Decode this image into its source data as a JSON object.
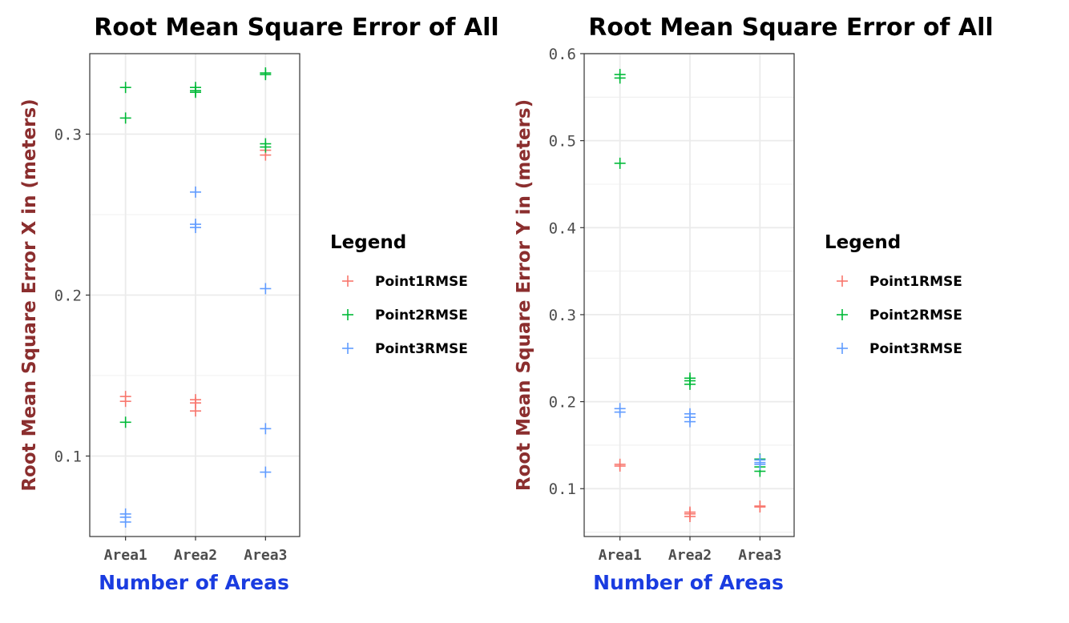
{
  "colors": {
    "axis_title_y": "#8B2E2E",
    "axis_title_x": "#1A3CE0",
    "grid": "#EBEBEB",
    "panel_border": "#333333",
    "tick_text": "#4D4D4D"
  },
  "chart_data": [
    {
      "type": "scatter",
      "title": "Root Mean Square Error of All",
      "xlabel": "Number of Areas",
      "ylabel": "Root Mean Square Error X in (meters)",
      "categories": [
        "Area1",
        "Area2",
        "Area3"
      ],
      "ylim": [
        0.05,
        0.35
      ],
      "yticks": [
        0.1,
        0.2,
        0.3
      ],
      "ytick_labels": [
        "0.1",
        "0.2",
        "0.3"
      ],
      "marker": "plus",
      "grid": true,
      "legend": {
        "title": "Legend",
        "placement": "right"
      },
      "series": [
        {
          "name": "Point1RMSE",
          "color": "#F8766D",
          "points": [
            [
              "Area1",
              0.137
            ],
            [
              "Area1",
              0.134
            ],
            [
              "Area2",
              0.135
            ],
            [
              "Area2",
              0.133
            ],
            [
              "Area2",
              0.128
            ],
            [
              "Area3",
              0.29
            ],
            [
              "Area3",
              0.287
            ]
          ]
        },
        {
          "name": "Point2RMSE",
          "color": "#00BA38",
          "points": [
            [
              "Area1",
              0.329
            ],
            [
              "Area1",
              0.31
            ],
            [
              "Area1",
              0.121
            ],
            [
              "Area2",
              0.329
            ],
            [
              "Area2",
              0.327
            ],
            [
              "Area2",
              0.326
            ],
            [
              "Area3",
              0.338
            ],
            [
              "Area3",
              0.337
            ],
            [
              "Area3",
              0.294
            ],
            [
              "Area3",
              0.292
            ]
          ]
        },
        {
          "name": "Point3RMSE",
          "color": "#619CFF",
          "points": [
            [
              "Area1",
              0.064
            ],
            [
              "Area1",
              0.062
            ],
            [
              "Area1",
              0.059
            ],
            [
              "Area2",
              0.264
            ],
            [
              "Area2",
              0.244
            ],
            [
              "Area2",
              0.242
            ],
            [
              "Area3",
              0.204
            ],
            [
              "Area3",
              0.117
            ],
            [
              "Area3",
              0.09
            ]
          ]
        }
      ]
    },
    {
      "type": "scatter",
      "title": "Root Mean Square Error of All",
      "xlabel": "Number of Areas",
      "ylabel": "Root Mean Square Error Y in (meters)",
      "categories": [
        "Area1",
        "Area2",
        "Area3"
      ],
      "ylim": [
        0.045,
        0.6
      ],
      "yticks": [
        0.1,
        0.2,
        0.3,
        0.4,
        0.5,
        0.6
      ],
      "ytick_labels": [
        "0.1",
        "0.2",
        "0.3",
        "0.4",
        "0.5",
        "0.6"
      ],
      "marker": "plus",
      "grid": true,
      "legend": {
        "title": "Legend",
        "placement": "right"
      },
      "series": [
        {
          "name": "Point1RMSE",
          "color": "#F8766D",
          "points": [
            [
              "Area1",
              0.128
            ],
            [
              "Area1",
              0.126
            ],
            [
              "Area2",
              0.073
            ],
            [
              "Area2",
              0.071
            ],
            [
              "Area2",
              0.068
            ],
            [
              "Area3",
              0.08
            ],
            [
              "Area3",
              0.079
            ]
          ]
        },
        {
          "name": "Point2RMSE",
          "color": "#00BA38",
          "points": [
            [
              "Area1",
              0.576
            ],
            [
              "Area1",
              0.572
            ],
            [
              "Area1",
              0.474
            ],
            [
              "Area2",
              0.227
            ],
            [
              "Area2",
              0.224
            ],
            [
              "Area2",
              0.22
            ],
            [
              "Area3",
              0.134
            ],
            [
              "Area3",
              0.125
            ],
            [
              "Area3",
              0.12
            ]
          ]
        },
        {
          "name": "Point3RMSE",
          "color": "#619CFF",
          "points": [
            [
              "Area1",
              0.192
            ],
            [
              "Area1",
              0.188
            ],
            [
              "Area2",
              0.186
            ],
            [
              "Area2",
              0.182
            ],
            [
              "Area2",
              0.177
            ],
            [
              "Area3",
              0.133
            ],
            [
              "Area3",
              0.13
            ],
            [
              "Area3",
              0.128
            ]
          ]
        }
      ]
    }
  ]
}
